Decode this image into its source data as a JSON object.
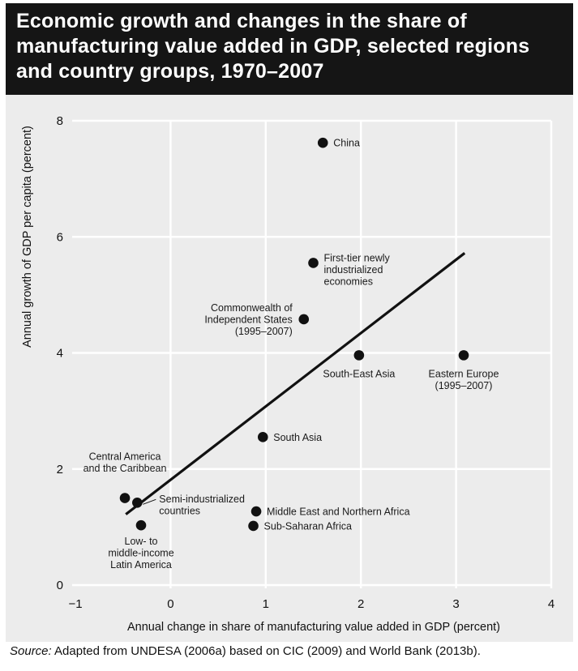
{
  "header": {
    "title": "Economic growth and changes in the share of manufacturing value added in GDP, selected regions and country groups, 1970–2007"
  },
  "source": {
    "label": "Source:",
    "text": "Adapted from UNDESA (2006a) based on CIC (2009) and World Bank (2013b)."
  },
  "colors": {
    "header_bg": "#151515",
    "panel_bg": "#ececec",
    "grid": "#ffffff",
    "point": "#111111"
  },
  "chart_data": {
    "type": "scatter",
    "title": "Economic growth and changes in the share of manufacturing value added in GDP, selected regions and country groups, 1970–2007",
    "xlabel": "Annual change in share of manufacturing value added in GDP (percent)",
    "ylabel": "Annual growth of GDP per capita (percent)",
    "xlim": [
      -1,
      4
    ],
    "ylim": [
      0,
      8
    ],
    "xticks": [
      -1,
      0,
      1,
      2,
      3,
      4
    ],
    "yticks": [
      0,
      2,
      4,
      6,
      8
    ],
    "x_tick_labels": [
      "−1",
      "0",
      "1",
      "2",
      "3",
      "4"
    ],
    "y_tick_labels": [
      "0",
      "2",
      "4",
      "6",
      "8"
    ],
    "grid": true,
    "points": [
      {
        "label": "China",
        "x": 1.6,
        "y": 7.62,
        "label_lines": [
          "China"
        ],
        "label_pos": "right"
      },
      {
        "label": "First-tier newly industrialized economies",
        "x": 1.5,
        "y": 5.55,
        "label_lines": [
          "First-tier newly",
          "industrialized",
          "economies"
        ],
        "label_pos": "right"
      },
      {
        "label": "Commonwealth of Independent States (1995–2007)",
        "x": 1.4,
        "y": 4.58,
        "label_lines": [
          "Commonwealth of",
          "Independent States",
          "(1995–2007)"
        ],
        "label_pos": "left"
      },
      {
        "label": "South-East Asia",
        "x": 1.98,
        "y": 3.96,
        "label_lines": [
          "South-East Asia"
        ],
        "label_pos": "below"
      },
      {
        "label": "Eastern Europe (1995–2007)",
        "x": 3.08,
        "y": 3.96,
        "label_lines": [
          "Eastern Europe",
          "(1995–2007)"
        ],
        "label_pos": "below"
      },
      {
        "label": "South Asia",
        "x": 0.97,
        "y": 2.55,
        "label_lines": [
          "South Asia"
        ],
        "label_pos": "right"
      },
      {
        "label": "Central America and the Caribbean",
        "x": -0.48,
        "y": 1.5,
        "label_lines": [
          "Central America",
          "and the Caribbean"
        ],
        "label_pos": "above"
      },
      {
        "label": "Semi-industrialized countries",
        "x": -0.35,
        "y": 1.42,
        "label_lines": [
          "Semi-industrialized",
          "countries"
        ],
        "label_pos": "right-leader"
      },
      {
        "label": "Low- to middle-income Latin America",
        "x": -0.31,
        "y": 1.03,
        "label_lines": [
          "Low- to",
          "middle-income",
          "Latin America"
        ],
        "label_pos": "below"
      },
      {
        "label": "Middle East and Northern Africa",
        "x": 0.9,
        "y": 1.27,
        "label_lines": [
          "Middle East and Northern Africa"
        ],
        "label_pos": "right"
      },
      {
        "label": "Sub-Saharan Africa",
        "x": 0.87,
        "y": 1.02,
        "label_lines": [
          "Sub-Saharan Africa"
        ],
        "label_pos": "right"
      }
    ],
    "trend_line": {
      "x": [
        -0.47,
        3.09
      ],
      "y": [
        1.22,
        5.72
      ]
    }
  }
}
